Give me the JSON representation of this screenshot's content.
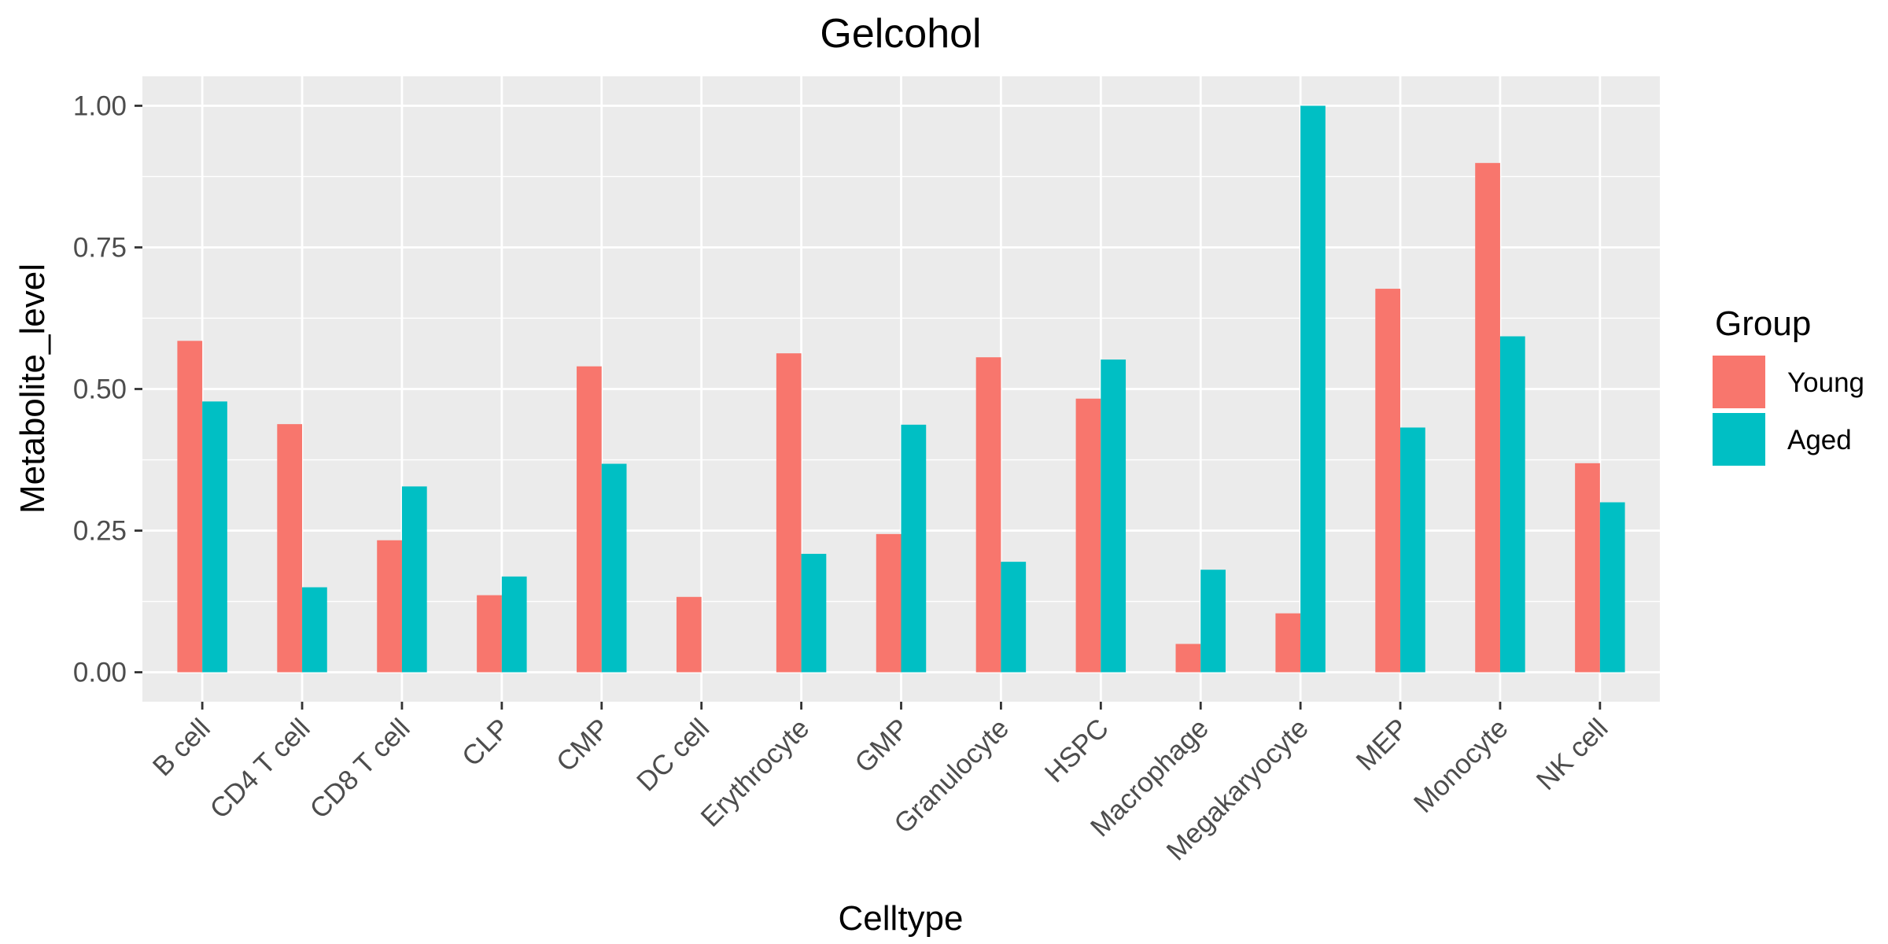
{
  "chart_data": {
    "type": "bar",
    "title": "Gelcohol",
    "xlabel": "Celltype",
    "ylabel": "Metabolite_level",
    "categories": [
      "B cell",
      "CD4 T cell",
      "CD8 T cell",
      "CLP",
      "CMP",
      "DC cell",
      "Erythrocyte",
      "GMP",
      "Granulocyte",
      "HSPC",
      "Macrophage",
      "Megakaryocyte",
      "MEP",
      "Monocyte",
      "NK cell"
    ],
    "series": [
      {
        "name": "Young",
        "color": "#F8766D",
        "values": [
          0.585,
          0.438,
          0.233,
          0.136,
          0.54,
          0.133,
          0.563,
          0.244,
          0.556,
          0.483,
          0.05,
          0.104,
          0.677,
          0.899,
          0.369
        ]
      },
      {
        "name": "Aged",
        "color": "#00BFC4",
        "values": [
          0.478,
          0.15,
          0.328,
          0.169,
          0.368,
          0.0,
          0.209,
          0.437,
          0.195,
          0.552,
          0.181,
          1.0,
          0.432,
          0.593,
          0.3
        ]
      }
    ],
    "ylim": [
      -0.052,
      1.052
    ],
    "yticks": [
      0.0,
      0.25,
      0.5,
      0.75,
      1.0
    ],
    "ytick_labels": [
      "0.00",
      "0.25",
      "0.50",
      "0.75",
      "1.00"
    ],
    "grid": true,
    "legend": {
      "title": "Group",
      "position": "right"
    }
  }
}
